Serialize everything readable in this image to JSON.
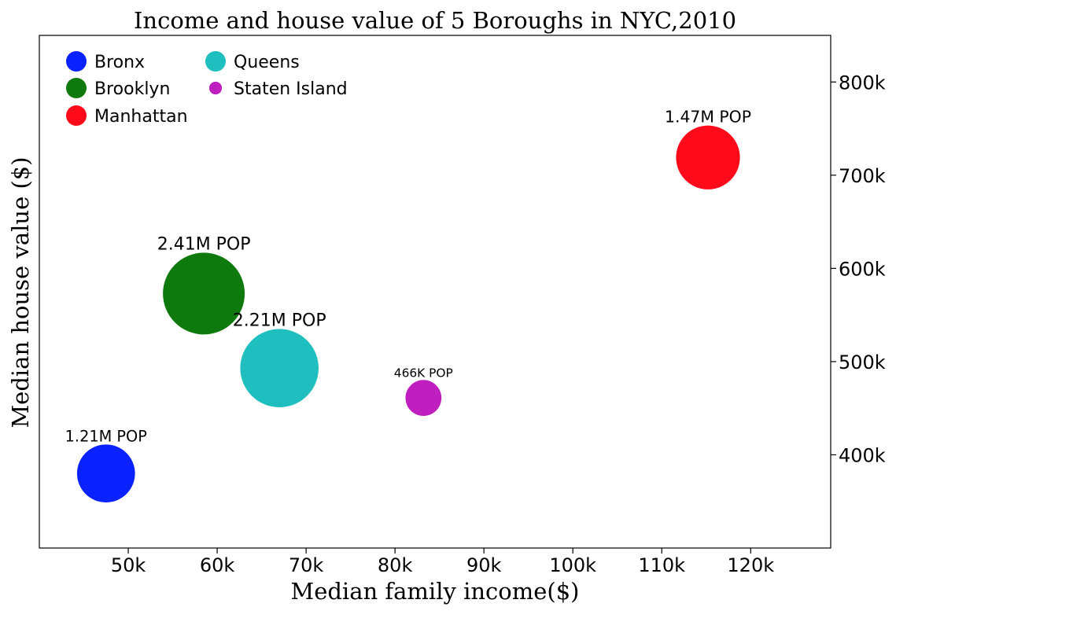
{
  "chart_data": {
    "type": "scatter",
    "title": "Income and house value of 5 Boroughs in NYC,2010",
    "xlabel": "Median family income($)",
    "ylabel": "Median house value ($)",
    "xlim": [
      40000,
      129000
    ],
    "ylim": [
      300000,
      850000
    ],
    "x_ticks": [
      {
        "value": 50000,
        "label": "50k"
      },
      {
        "value": 60000,
        "label": "60k"
      },
      {
        "value": 70000,
        "label": "70k"
      },
      {
        "value": 80000,
        "label": "80k"
      },
      {
        "value": 90000,
        "label": "90k"
      },
      {
        "value": 100000,
        "label": "100k"
      },
      {
        "value": 110000,
        "label": "110k"
      },
      {
        "value": 120000,
        "label": "120k"
      }
    ],
    "y_ticks": [
      {
        "value": 400000,
        "label": "400k"
      },
      {
        "value": 500000,
        "label": "500k"
      },
      {
        "value": 600000,
        "label": "600k"
      },
      {
        "value": 700000,
        "label": "700k"
      },
      {
        "value": 800000,
        "label": "800k"
      }
    ],
    "y_axis_side": "right",
    "grid": false,
    "legend_position": "top-left",
    "point_size_encodes": "population",
    "series": [
      {
        "name": "Bronx",
        "color": "#0a22ff",
        "x": 47500,
        "y": 380000,
        "population": 1210000,
        "label": "1.21M POP"
      },
      {
        "name": "Brooklyn",
        "color": "#0e7a0e",
        "x": 58500,
        "y": 573000,
        "population": 2410000,
        "label": "2.41M POP"
      },
      {
        "name": "Manhattan",
        "color": "#ff0a1a",
        "x": 115200,
        "y": 719000,
        "population": 1470000,
        "label": "1.47M POP"
      },
      {
        "name": "Queens",
        "color": "#1fbfbf",
        "x": 67000,
        "y": 493000,
        "population": 2210000,
        "label": "2.21M POP"
      },
      {
        "name": "Staten Island",
        "color": "#bf1fbf",
        "x": 83200,
        "y": 461000,
        "population": 466000,
        "label": "466K POP"
      }
    ]
  }
}
